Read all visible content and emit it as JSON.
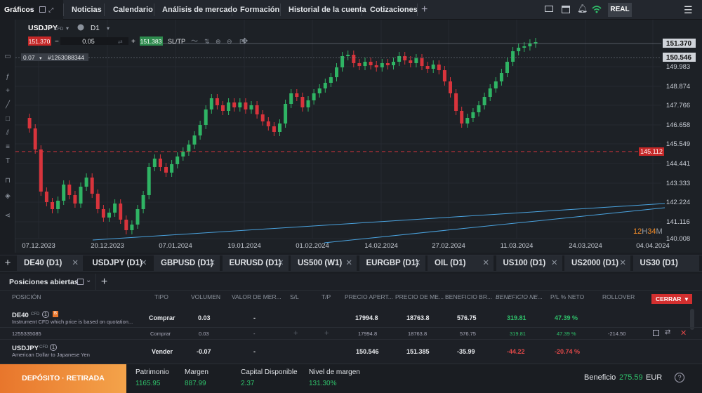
{
  "topbar": {
    "graficos": "Gráficos",
    "tabs": [
      "Noticias",
      "Calendario",
      "Análisis de mercado",
      "Formación",
      "Historial de la cuenta",
      "Cotizaciones"
    ],
    "add": "+",
    "mode": "REAL"
  },
  "chart": {
    "symbol": "USDJPY",
    "symbol_type": "CFD",
    "timeframe": "D1",
    "sell_price": "151.370",
    "volume": "0.05",
    "buy_price": "151.383",
    "sltp": "SL/TP",
    "order_volume": "0.07",
    "order_id": "#1263088344",
    "price_ticks": [
      "151.370",
      "150.546",
      "149.983",
      "148.874",
      "147.766",
      "146.658",
      "145.549",
      "144.441",
      "143.333",
      "142.224",
      "141.116",
      "140.008"
    ],
    "current_price_label": "151.370",
    "open_price_label": "150.546",
    "alert_price_label": "145.112",
    "date_ticks": [
      "07.12.2023",
      "20.12.2023",
      "07.01.2024",
      "19.01.2024",
      "01.02.2024",
      "14.02.2024",
      "27.02.2024",
      "11.03.2024",
      "24.03.2024",
      "04.04.2024"
    ],
    "countdown_h": "12",
    "countdown_h_unit": "H",
    "countdown_m": "34",
    "countdown_m_unit": "M",
    "colors": {
      "up": "#2fb464",
      "down": "#d8343c",
      "bg": "#1d2126",
      "grid": "#2a2e35",
      "trendline": "#4aa3df",
      "alert": "#d8343c"
    }
  },
  "instrument_tabs": [
    {
      "label": "DE40 (D1)",
      "active": false
    },
    {
      "label": "USDJPY (D1)",
      "active": true
    },
    {
      "label": "GBPUSD (D1)",
      "active": false
    },
    {
      "label": "EURUSD (D1)",
      "active": false
    },
    {
      "label": "US500 (W1)",
      "active": false
    },
    {
      "label": "EURGBP (D1)",
      "active": false
    },
    {
      "label": "OIL (D1)",
      "active": false
    },
    {
      "label": "US100 (D1)",
      "active": false
    },
    {
      "label": "US2000 (D1)",
      "active": false
    },
    {
      "label": "US30 (D1)",
      "active": false
    }
  ],
  "positions": {
    "title": "Posiciones abiertas",
    "close_button": "CERRAR",
    "columns": [
      "POSICIÓN",
      "TIPO",
      "VOLUMEN",
      "VALOR DE MER...",
      "S/L",
      "T/P",
      "PRECIO APERT...",
      "PRECIO DE ME...",
      "BENEFICIO BR...",
      "BENEFICIO NE...",
      "P/L % NETO",
      "ROLLOVER"
    ],
    "rows": [
      {
        "symbol": "DE40",
        "tag": "CFD",
        "count": "1",
        "desc": "Instrument CFD which price is based on quotation...",
        "type": "Comprar",
        "volume": "0.03",
        "market_value": "-",
        "open": "17994.8",
        "market": "18763.8",
        "gross": "576.75",
        "net": "319.81",
        "pl": "47.39 %"
      },
      {
        "sub": true,
        "id": "1255335085",
        "type": "Comprar",
        "volume": "0.03",
        "market_value": "-",
        "sl": "+",
        "tp": "+",
        "open": "17994.8",
        "market": "18763.8",
        "gross": "576.75",
        "net": "319.81",
        "pl": "47.39 %",
        "rollover": "-214.50"
      },
      {
        "symbol": "USDJPY",
        "tag": "CFD",
        "count": "1",
        "desc": "American Dollar to Japanese Yen",
        "type": "Vender",
        "volume": "-0.07",
        "market_value": "-",
        "open": "150.546",
        "market": "151.385",
        "gross": "-35.99",
        "net": "-44.22",
        "pl": "-20.74 %"
      }
    ]
  },
  "footer": {
    "deposit": "DEPÓSITO · RETIRADA",
    "stats": [
      {
        "label": "Patrimonio",
        "value": "1165.95"
      },
      {
        "label": "Margen",
        "value": "887.99"
      },
      {
        "label": "Capital Disponible",
        "value": "2.37"
      },
      {
        "label": "Nivel de margen",
        "value": "131.30%"
      }
    ],
    "profit_label": "Beneficio",
    "profit_value": "275.59",
    "currency": "EUR"
  }
}
